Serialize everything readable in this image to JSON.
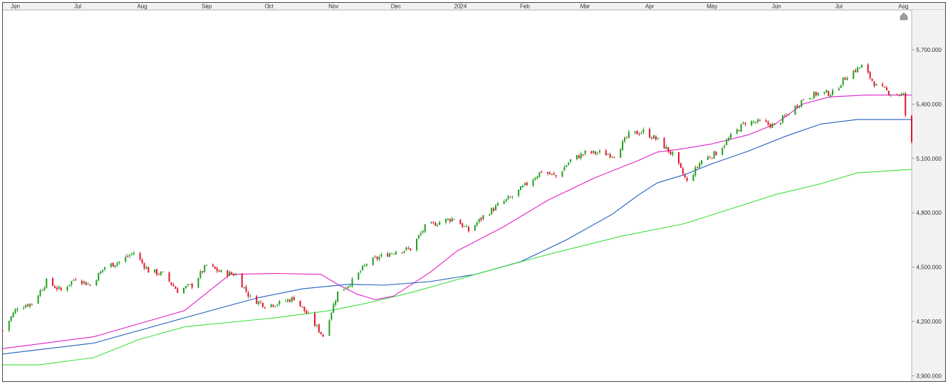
{
  "chart_data": {
    "type": "candlestick",
    "title": "",
    "xlabel": "",
    "ylabel": "",
    "x_axis_labels": [
      "Jun",
      "Jul",
      "Aug",
      "Sep",
      "Oct",
      "Nov",
      "Dec",
      "2024",
      "Feb",
      "Mar",
      "Apr",
      "May",
      "Jun",
      "Jul",
      "Aug"
    ],
    "x_axis_dates": [
      "2023-06-01",
      "2023-07-01",
      "2023-08-01",
      "2023-09-01",
      "2023-10-01",
      "2023-11-01",
      "2023-12-01",
      "2024-01-01",
      "2024-02-01",
      "2024-03-01",
      "2024-04-01",
      "2024-05-01",
      "2024-06-01",
      "2024-07-01",
      "2024-08-01"
    ],
    "x_range": [
      "2023-05-26",
      "2024-08-05"
    ],
    "y_axis_labels": [
      "5,700.000",
      "5,400.000",
      "5,100.000",
      "4,800.000",
      "4,500.000",
      "4,200.000",
      "3,900.000"
    ],
    "y_ticks": [
      5700,
      5400,
      5100,
      4800,
      4500,
      4200,
      3900
    ],
    "ylim": [
      3870,
      5920
    ],
    "grid": false,
    "colors": {
      "up": "#1e9e1e",
      "down": "#e0142a",
      "ma50": "#e020c8",
      "ma100": "#1f5fbf",
      "ma200": "#3fe03f",
      "axis_bg": "#f2f2f2"
    },
    "price_path": [
      [
        "2023-05-26",
        4150
      ],
      [
        "2023-06-02",
        4280
      ],
      [
        "2023-06-09",
        4300
      ],
      [
        "2023-06-16",
        4420
      ],
      [
        "2023-06-23",
        4370
      ],
      [
        "2023-06-30",
        4440
      ],
      [
        "2023-07-07",
        4400
      ],
      [
        "2023-07-14",
        4500
      ],
      [
        "2023-07-21",
        4530
      ],
      [
        "2023-07-28",
        4580
      ],
      [
        "2023-08-04",
        4480
      ],
      [
        "2023-08-11",
        4460
      ],
      [
        "2023-08-18",
        4370
      ],
      [
        "2023-08-25",
        4400
      ],
      [
        "2023-09-01",
        4510
      ],
      [
        "2023-09-08",
        4470
      ],
      [
        "2023-09-15",
        4460
      ],
      [
        "2023-09-22",
        4330
      ],
      [
        "2023-09-29",
        4290
      ],
      [
        "2023-10-06",
        4300
      ],
      [
        "2023-10-13",
        4330
      ],
      [
        "2023-10-20",
        4230
      ],
      [
        "2023-10-27",
        4120
      ],
      [
        "2023-11-03",
        4360
      ],
      [
        "2023-11-10",
        4420
      ],
      [
        "2023-11-17",
        4520
      ],
      [
        "2023-11-24",
        4560
      ],
      [
        "2023-12-01",
        4590
      ],
      [
        "2023-12-08",
        4600
      ],
      [
        "2023-12-15",
        4720
      ],
      [
        "2023-12-22",
        4750
      ],
      [
        "2023-12-29",
        4770
      ],
      [
        "2024-01-05",
        4700
      ],
      [
        "2024-01-12",
        4780
      ],
      [
        "2024-01-19",
        4840
      ],
      [
        "2024-01-26",
        4890
      ],
      [
        "2024-02-02",
        4960
      ],
      [
        "2024-02-09",
        5030
      ],
      [
        "2024-02-16",
        5000
      ],
      [
        "2024-02-23",
        5090
      ],
      [
        "2024-03-01",
        5130
      ],
      [
        "2024-03-08",
        5130
      ],
      [
        "2024-03-15",
        5120
      ],
      [
        "2024-03-22",
        5230
      ],
      [
        "2024-03-29",
        5250
      ],
      [
        "2024-04-05",
        5200
      ],
      [
        "2024-04-12",
        5120
      ],
      [
        "2024-04-19",
        4970
      ],
      [
        "2024-04-26",
        5090
      ],
      [
        "2024-05-03",
        5130
      ],
      [
        "2024-05-10",
        5220
      ],
      [
        "2024-05-17",
        5300
      ],
      [
        "2024-05-24",
        5300
      ],
      [
        "2024-05-31",
        5280
      ],
      [
        "2024-06-07",
        5350
      ],
      [
        "2024-06-14",
        5430
      ],
      [
        "2024-06-21",
        5460
      ],
      [
        "2024-06-28",
        5460
      ],
      [
        "2024-07-05",
        5560
      ],
      [
        "2024-07-12",
        5610
      ],
      [
        "2024-07-19",
        5500
      ],
      [
        "2024-07-26",
        5460
      ],
      [
        "2024-08-01",
        5450
      ],
      [
        "2024-08-02",
        5340
      ],
      [
        "2024-08-05",
        5180
      ]
    ],
    "series": [
      {
        "values": [
          [
            0,
            4050
          ],
          [
            0.1,
            4115
          ],
          [
            0.2,
            4260
          ],
          [
            0.25,
            4460
          ],
          [
            0.3,
            4465
          ],
          [
            0.35,
            4460
          ],
          [
            0.37,
            4400
          ],
          [
            0.39,
            4350
          ],
          [
            0.41,
            4320
          ],
          [
            0.43,
            4340
          ],
          [
            0.47,
            4470
          ],
          [
            0.5,
            4590
          ],
          [
            0.55,
            4720
          ],
          [
            0.6,
            4870
          ],
          [
            0.65,
            4990
          ],
          [
            0.7,
            5090
          ],
          [
            0.72,
            5135
          ],
          [
            0.75,
            5155
          ],
          [
            0.78,
            5180
          ],
          [
            0.82,
            5230
          ],
          [
            0.85,
            5290
          ],
          [
            0.88,
            5400
          ],
          [
            0.91,
            5440
          ],
          [
            0.95,
            5450
          ],
          [
            1,
            5450
          ]
        ]
      },
      {
        "values": [
          [
            0,
            4020
          ],
          [
            0.1,
            4080
          ],
          [
            0.2,
            4220
          ],
          [
            0.28,
            4330
          ],
          [
            0.33,
            4380
          ],
          [
            0.38,
            4405
          ],
          [
            0.42,
            4400
          ],
          [
            0.47,
            4420
          ],
          [
            0.52,
            4460
          ],
          [
            0.57,
            4530
          ],
          [
            0.62,
            4650
          ],
          [
            0.67,
            4790
          ],
          [
            0.7,
            4900
          ],
          [
            0.72,
            4965
          ],
          [
            0.75,
            5010
          ],
          [
            0.78,
            5070
          ],
          [
            0.82,
            5140
          ],
          [
            0.86,
            5220
          ],
          [
            0.9,
            5290
          ],
          [
            0.94,
            5315
          ],
          [
            1,
            5315
          ]
        ]
      },
      {
        "values": [
          [
            0,
            3960
          ],
          [
            0.04,
            3960
          ],
          [
            0.1,
            4000
          ],
          [
            0.15,
            4100
          ],
          [
            0.2,
            4170
          ],
          [
            0.3,
            4220
          ],
          [
            0.36,
            4260
          ],
          [
            0.4,
            4300
          ],
          [
            0.45,
            4360
          ],
          [
            0.52,
            4460
          ],
          [
            0.6,
            4570
          ],
          [
            0.68,
            4670
          ],
          [
            0.75,
            4740
          ],
          [
            0.8,
            4820
          ],
          [
            0.85,
            4900
          ],
          [
            0.9,
            4960
          ],
          [
            0.94,
            5020
          ],
          [
            1,
            5040
          ]
        ]
      }
    ]
  }
}
